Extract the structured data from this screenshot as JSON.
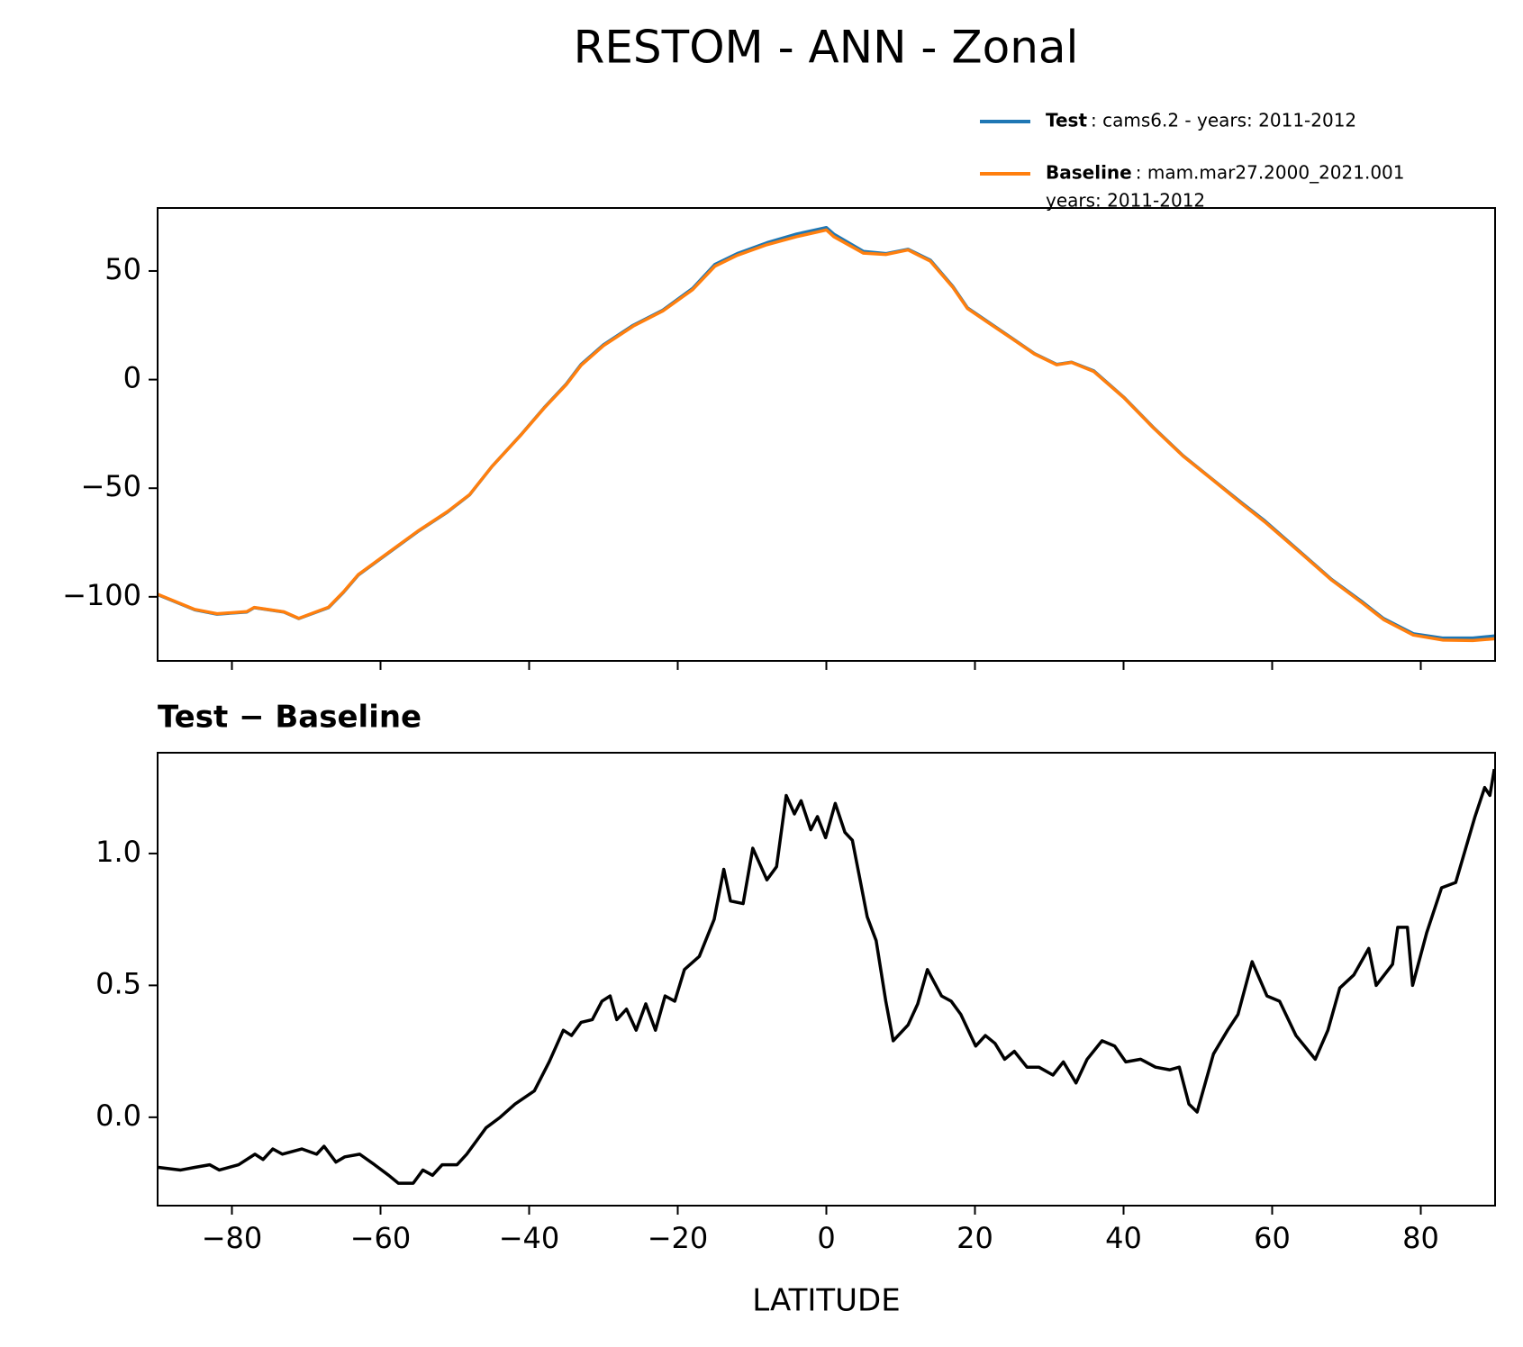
{
  "title": "RESTOM - ANN - Zonal",
  "chart_data": [
    {
      "type": "line",
      "x": [
        -90,
        -85,
        -82,
        -78,
        -77,
        -73,
        -71,
        -67,
        -65,
        -63,
        -59,
        -55,
        -51,
        -48,
        -45,
        -41,
        -38,
        -35,
        -33,
        -30,
        -26,
        -22,
        -18,
        -15,
        -12,
        -8,
        -4,
        0,
        1,
        5,
        8,
        11,
        14,
        17,
        19,
        22,
        25,
        28,
        31,
        33,
        36,
        40,
        44,
        48,
        52,
        56,
        59,
        64,
        68,
        72,
        75,
        79,
        83,
        87,
        90
      ],
      "series": [
        {
          "name": "Test",
          "description": [
            ": cams6.2 - years: 2011-2012"
          ],
          "color": "#1f77b4",
          "values": [
            -99,
            -106,
            -108,
            -107,
            -105,
            -107,
            -110,
            -105,
            -98,
            -90,
            -80,
            -70,
            -61,
            -53,
            -40,
            -25,
            -13,
            -2,
            7,
            16,
            25,
            32,
            42,
            53,
            58,
            63,
            67,
            70,
            67,
            59,
            58,
            60,
            55,
            43,
            33,
            26,
            19,
            12,
            7,
            8,
            4,
            -8,
            -22,
            -35,
            -46,
            -57,
            -65,
            -80,
            -92,
            -102,
            -110,
            -117,
            -119,
            -119,
            -118
          ]
        },
        {
          "name": "Baseline",
          "description": [
            ": mam.mar27.2000_2021.001",
            "years: 2011-2012"
          ],
          "color": "#ff7f0e",
          "values": [
            -98.8,
            -105.8,
            -107.8,
            -106.8,
            -104.9,
            -106.9,
            -109.9,
            -104.8,
            -97.8,
            -89.8,
            -79.8,
            -69.8,
            -60.8,
            -52.9,
            -40,
            -25.1,
            -13.2,
            -2.3,
            6.6,
            15.6,
            24.6,
            31.6,
            41.4,
            52.2,
            57.2,
            62.1,
            65.8,
            68.9,
            65.8,
            58.2,
            57.6,
            59.7,
            54.5,
            42.6,
            32.7,
            25.7,
            18.8,
            11.8,
            6.8,
            7.9,
            3.7,
            -8.2,
            -22.2,
            -35.2,
            -46.2,
            -57.4,
            -65.5,
            -80.3,
            -92.3,
            -102.5,
            -110.5,
            -117.6,
            -119.9,
            -120.1,
            -119.3
          ]
        }
      ],
      "xlim": [
        -90,
        90
      ],
      "xticks": [
        -80,
        -60,
        -40,
        -20,
        0,
        20,
        40,
        60,
        80
      ],
      "ylim": [
        -129.5,
        79
      ],
      "yticks": [
        {
          "value": -100,
          "label": "−100"
        },
        {
          "value": -50,
          "label": "−50"
        },
        0,
        50
      ],
      "legend": "upper right"
    },
    {
      "type": "line",
      "title": "Test − Baseline",
      "xlabel": "LATITUDE",
      "x": [
        -89.9,
        -86.9,
        -85.0,
        -83.0,
        -81.7,
        -79.1,
        -76.9,
        -75.8,
        -74.5,
        -73.2,
        -70.6,
        -68.6,
        -67.6,
        -66.0,
        -64.8,
        -62.8,
        -60.8,
        -58.9,
        -57.6,
        -55.6,
        -54.3,
        -53.0,
        -51.7,
        -49.7,
        -48.4,
        -47.1,
        -45.8,
        -43.9,
        -41.9,
        -39.3,
        -37.3,
        -35.4,
        -34.3,
        -33.0,
        -31.5,
        -30.2,
        -29.1,
        -28.2,
        -26.9,
        -25.6,
        -24.3,
        -23.0,
        -21.7,
        -20.4,
        -19.1,
        -17.1,
        -15.1,
        -13.8,
        -12.9,
        -11.2,
        -9.9,
        -8.0,
        -6.7,
        -5.4,
        -4.3,
        -3.4,
        -2.1,
        -1.2,
        -0.1,
        1.2,
        2.5,
        3.5,
        4.4,
        5.5,
        6.7,
        8.0,
        9.0,
        11.0,
        12.3,
        13.6,
        15.5,
        16.8,
        18.1,
        20.1,
        21.4,
        22.7,
        24.0,
        25.3,
        27.0,
        28.6,
        30.5,
        31.9,
        33.6,
        35.1,
        37.1,
        38.8,
        40.3,
        42.3,
        44.3,
        46.2,
        47.5,
        48.8,
        49.9,
        52.1,
        54.0,
        55.4,
        57.3,
        59.3,
        61.0,
        63.2,
        65.8,
        67.5,
        69.1,
        71.0,
        73.0,
        74.0,
        76.2,
        76.9,
        78.2,
        78.9,
        80.8,
        82.8,
        84.7,
        87.3,
        88.6,
        89.3,
        89.9
      ],
      "series": [
        {
          "name": "Test − Baseline",
          "color": "#000000",
          "values": [
            -0.19,
            -0.2,
            -0.19,
            -0.18,
            -0.2,
            -0.18,
            -0.14,
            -0.16,
            -0.12,
            -0.14,
            -0.12,
            -0.14,
            -0.11,
            -0.17,
            -0.15,
            -0.14,
            -0.18,
            -0.22,
            -0.25,
            -0.25,
            -0.2,
            -0.22,
            -0.18,
            -0.18,
            -0.14,
            -0.09,
            -0.04,
            0.0,
            0.05,
            0.1,
            0.21,
            0.33,
            0.31,
            0.36,
            0.37,
            0.44,
            0.46,
            0.37,
            0.41,
            0.33,
            0.43,
            0.33,
            0.46,
            0.44,
            0.56,
            0.61,
            0.75,
            0.94,
            0.82,
            0.81,
            1.02,
            0.9,
            0.95,
            1.22,
            1.15,
            1.2,
            1.09,
            1.14,
            1.06,
            1.19,
            1.08,
            1.05,
            0.92,
            0.76,
            0.67,
            0.44,
            0.29,
            0.35,
            0.43,
            0.56,
            0.46,
            0.44,
            0.39,
            0.27,
            0.31,
            0.28,
            0.22,
            0.25,
            0.19,
            0.19,
            0.16,
            0.21,
            0.13,
            0.22,
            0.29,
            0.27,
            0.21,
            0.22,
            0.19,
            0.18,
            0.19,
            0.05,
            0.02,
            0.24,
            0.33,
            0.39,
            0.59,
            0.46,
            0.44,
            0.31,
            0.22,
            0.33,
            0.49,
            0.54,
            0.64,
            0.5,
            0.58,
            0.72,
            0.72,
            0.5,
            0.7,
            0.87,
            0.89,
            1.14,
            1.25,
            1.22,
            1.32
          ]
        }
      ],
      "xlim": [
        -90,
        90
      ],
      "xticks": [
        {
          "value": -80,
          "label": "−80"
        },
        {
          "value": -60,
          "label": "−60"
        },
        {
          "value": -40,
          "label": "−40"
        },
        {
          "value": -20,
          "label": "−20"
        },
        0,
        20,
        40,
        60,
        80
      ],
      "ylim": [
        -0.335,
        1.382
      ],
      "yticks": [
        {
          "value": 0,
          "label": "0.0"
        },
        {
          "value": 0.5,
          "label": "0.5"
        },
        {
          "value": 1,
          "label": "1.0"
        }
      ]
    }
  ]
}
